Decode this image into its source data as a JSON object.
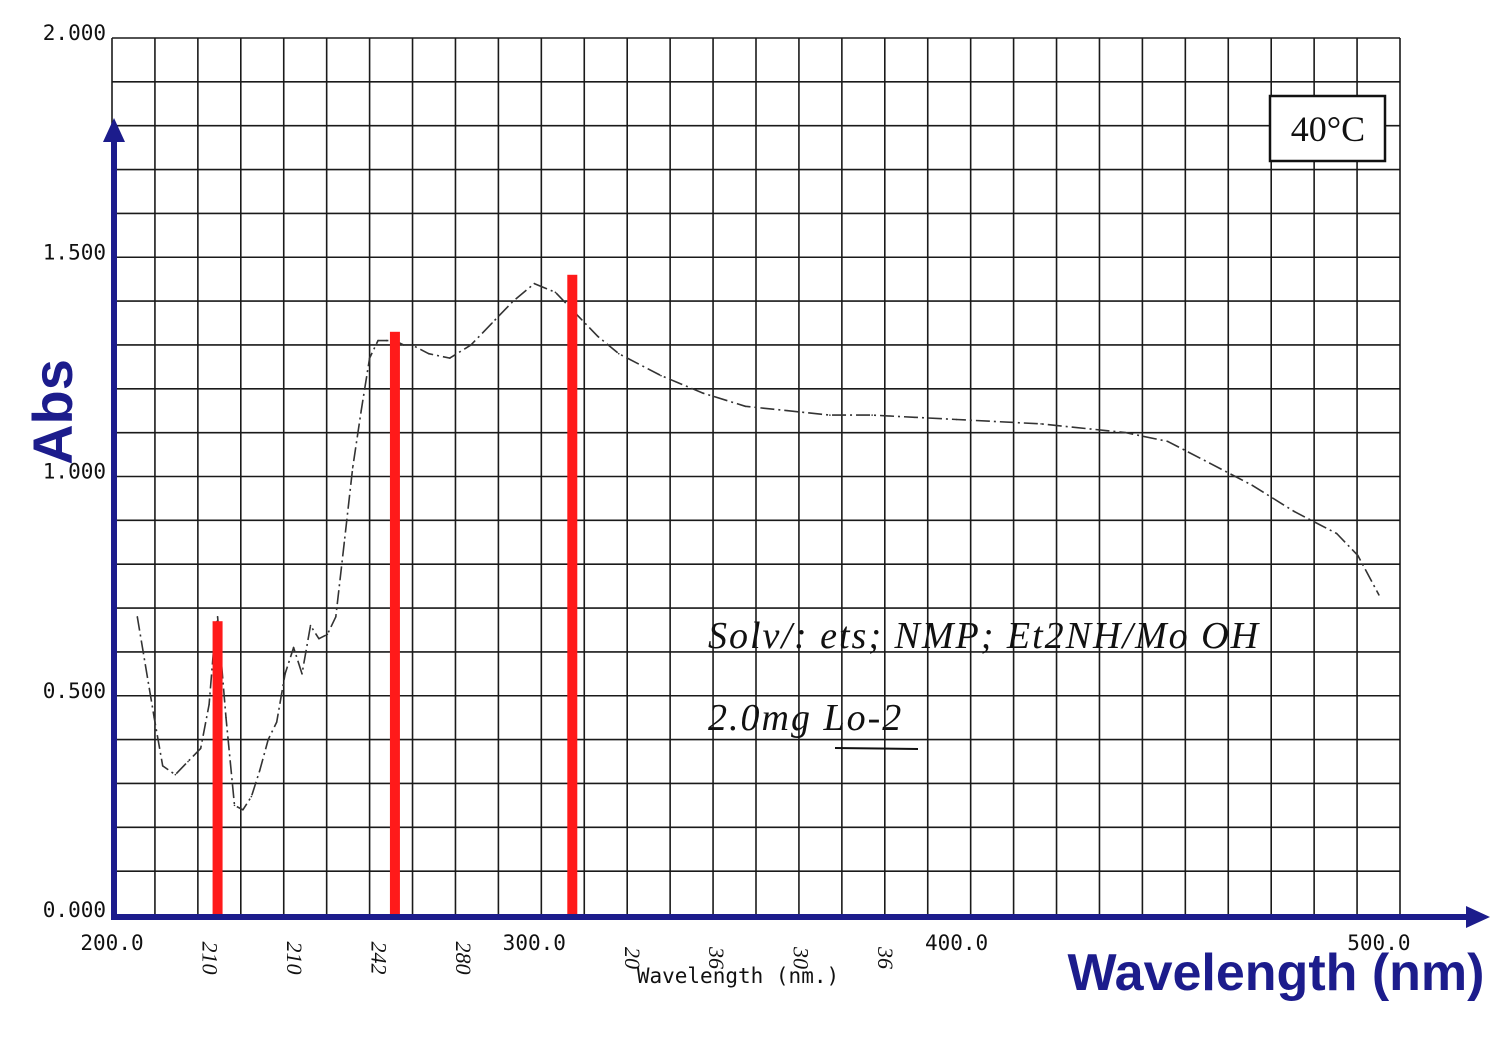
{
  "chart_data": {
    "type": "line",
    "ylabel": "Abs",
    "xlabel": "Wavelength (nm)",
    "printed_xlabel": "Wavelength (nm.)",
    "ylim": [
      0,
      2.0
    ],
    "xlim": [
      200,
      505
    ],
    "grid": true,
    "y_ticks": [
      "0.000",
      "0.500",
      "1.000",
      "1.500",
      "2.000"
    ],
    "y_tick_values": [
      0,
      0.5,
      1.0,
      1.5,
      2.0
    ],
    "x_ticks": [
      "200.0",
      "300.0",
      "400.0",
      "500.0"
    ],
    "x_tick_values": [
      200,
      300,
      400,
      500
    ],
    "handwritten_ticks": [
      "210",
      "210",
      "242",
      "280",
      "20",
      "36",
      "30",
      "36"
    ],
    "handwritten_tick_values": [
      220,
      240,
      260,
      280,
      320,
      340,
      360,
      380
    ],
    "temperature_label": "40°C",
    "annotations": [
      "Solv/: ets; NMP; Et2NH/Mo OH",
      "2.0mg Lo-2"
    ],
    "series": [
      {
        "name": "",
        "style": "dash-dot",
        "color": "#333333",
        "x": [
          206,
          210,
          212,
          215,
          218,
          221,
          223,
          224,
          225,
          227,
          229,
          231,
          233,
          235,
          237,
          239,
          241,
          243,
          245,
          247,
          249,
          251,
          253,
          255,
          257,
          259,
          261,
          263,
          265,
          267,
          269,
          271,
          275,
          280,
          285,
          290,
          295,
          300,
          305,
          310,
          315,
          320,
          330,
          340,
          350,
          360,
          370,
          380,
          390,
          400,
          420,
          440,
          450,
          460,
          470,
          480,
          490,
          495,
          500
        ],
        "y": [
          0.68,
          0.45,
          0.34,
          0.32,
          0.35,
          0.38,
          0.48,
          0.6,
          0.68,
          0.45,
          0.25,
          0.24,
          0.27,
          0.33,
          0.4,
          0.44,
          0.55,
          0.61,
          0.55,
          0.66,
          0.63,
          0.64,
          0.68,
          0.85,
          1.02,
          1.15,
          1.27,
          1.31,
          1.31,
          1.31,
          1.3,
          1.3,
          1.28,
          1.27,
          1.3,
          1.35,
          1.4,
          1.44,
          1.42,
          1.37,
          1.32,
          1.28,
          1.23,
          1.19,
          1.16,
          1.15,
          1.14,
          1.14,
          1.135,
          1.13,
          1.12,
          1.1,
          1.08,
          1.03,
          0.98,
          0.92,
          0.87,
          0.82,
          0.73
        ]
      }
    ],
    "highlight_bars": {
      "color": "#ff1a1a",
      "x": [
        225,
        267,
        309
      ],
      "values": [
        0.67,
        1.33,
        1.46
      ]
    }
  }
}
